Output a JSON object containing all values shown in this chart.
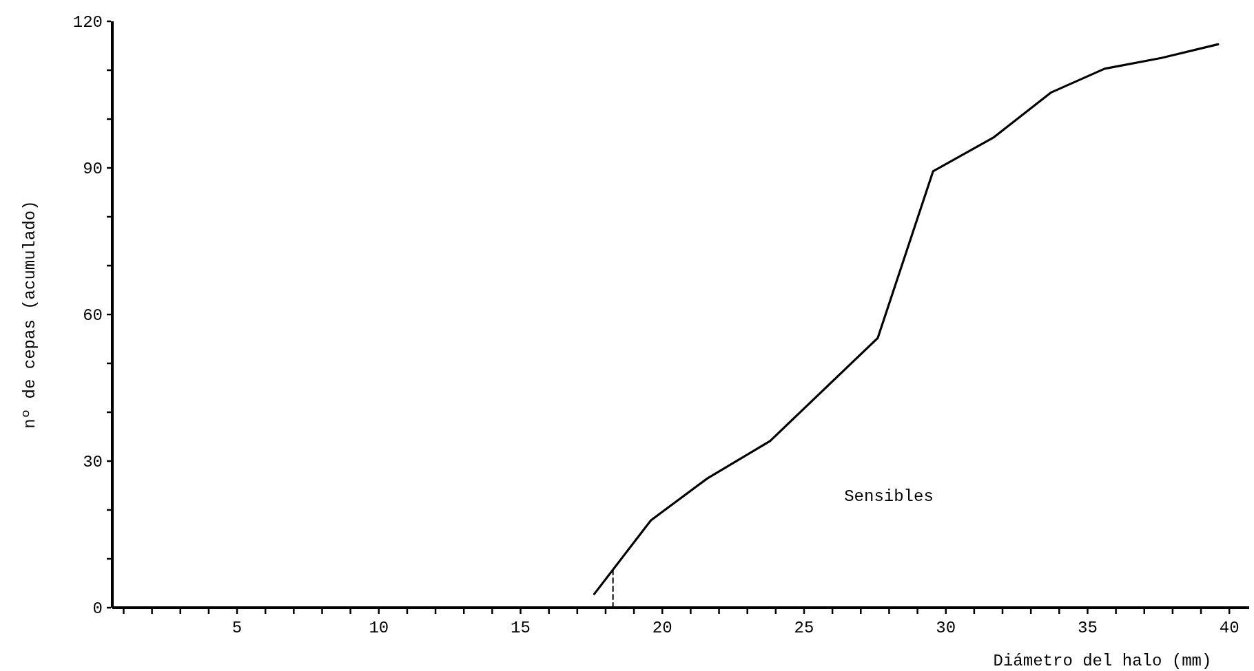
{
  "chart_data": {
    "type": "line",
    "xlabel": "Diámetro del halo (mm)",
    "ylabel": "nº de cepas (acumulado)",
    "x": [
      17.6,
      19.6,
      21.6,
      23.8,
      27.6,
      29.55,
      31.7,
      33.7,
      35.6,
      37.6,
      39.6
    ],
    "series": [
      {
        "color": "#000000",
        "values": [
          2.8,
          17.9,
          26.5,
          34.1,
          55.2,
          89.3,
          96.3,
          105.4,
          110.3,
          112.5,
          115.3
        ]
      },
      {
        "type": "line",
        "color": "#000000",
        "line_style": "dashed",
        "x": [
          18.26,
          18.26
        ],
        "values": [
          0,
          7.9
        ]
      }
    ],
    "xlim": [
      0.6,
      40.7
    ],
    "ylim": [
      0,
      120
    ],
    "xticks": [
      {
        "value": 1,
        "label": null
      },
      {
        "value": 2,
        "label": null
      },
      {
        "value": 3,
        "label": null
      },
      {
        "value": 4,
        "label": null
      },
      5,
      {
        "value": 6,
        "label": null
      },
      {
        "value": 7,
        "label": null
      },
      {
        "value": 8,
        "label": null
      },
      {
        "value": 9,
        "label": null
      },
      10,
      {
        "value": 11,
        "label": null
      },
      {
        "value": 12,
        "label": null
      },
      {
        "value": 13,
        "label": null
      },
      {
        "value": 14,
        "label": null
      },
      15,
      {
        "value": 16,
        "label": null
      },
      {
        "value": 17,
        "label": null
      },
      {
        "value": 18,
        "label": null
      },
      {
        "value": 19,
        "label": null
      },
      20,
      {
        "value": 21,
        "label": null
      },
      {
        "value": 22,
        "label": null
      },
      {
        "value": 23,
        "label": null
      },
      {
        "value": 24,
        "label": null
      },
      25,
      {
        "value": 26,
        "label": null
      },
      {
        "value": 27,
        "label": null
      },
      {
        "value": 28,
        "label": null
      },
      {
        "value": 29,
        "label": null
      },
      30,
      {
        "value": 31,
        "label": null
      },
      {
        "value": 32,
        "label": null
      },
      {
        "value": 33,
        "label": null
      },
      {
        "value": 34,
        "label": null
      },
      35,
      {
        "value": 36,
        "label": null
      },
      {
        "value": 37,
        "label": null
      },
      {
        "value": 38,
        "label": null
      },
      {
        "value": 39,
        "label": null
      },
      40
    ],
    "yticks": [
      0,
      {
        "value": 10,
        "label": null
      },
      {
        "value": 20,
        "label": null
      },
      30,
      {
        "value": 40,
        "label": null
      },
      {
        "value": 50,
        "label": null
      },
      60,
      {
        "value": 70,
        "label": null
      },
      {
        "value": 80,
        "label": null
      },
      90,
      {
        "value": 100,
        "label": null
      },
      {
        "value": 110,
        "label": null
      },
      120
    ],
    "annotations": [
      "Sensibles"
    ],
    "grid": false,
    "marker": "none",
    "line_style": "solid"
  }
}
